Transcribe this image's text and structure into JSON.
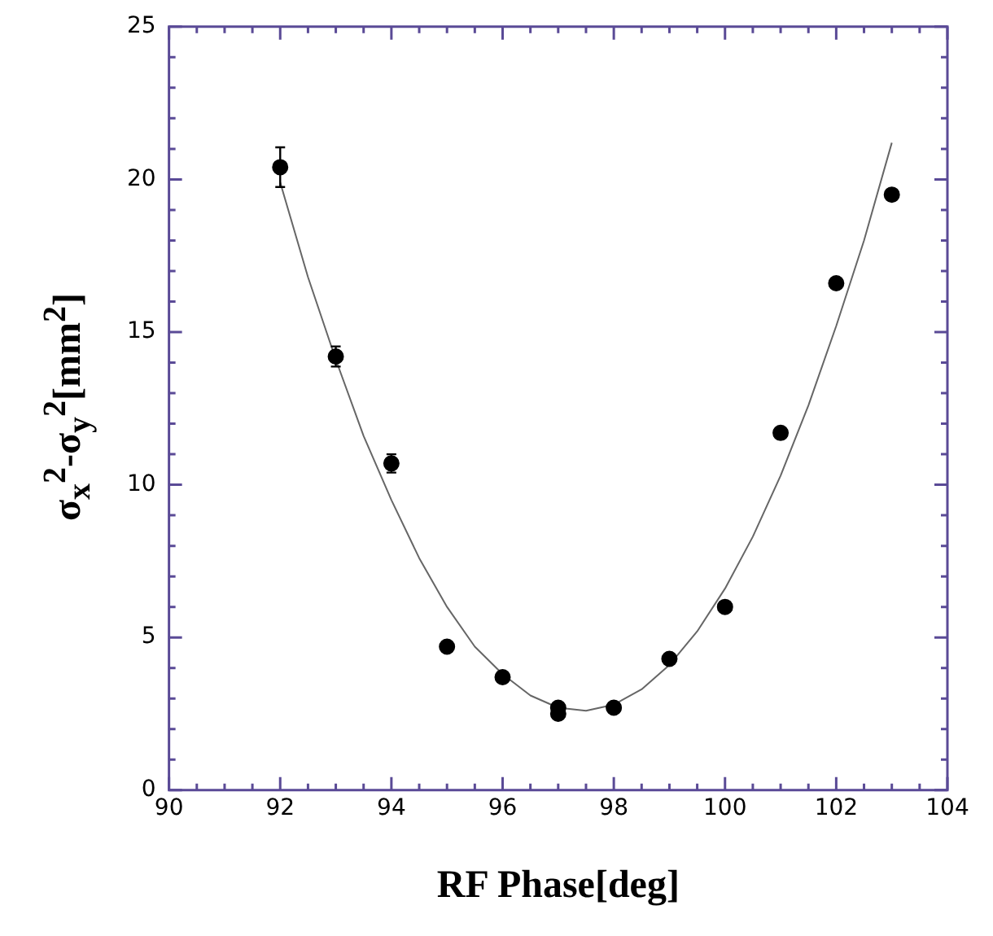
{
  "chart_data": {
    "type": "scatter",
    "xlabel": "RF Phase[deg]",
    "ylabel": "σ$_{x}$$^{2}$-σ$_{y}$$^{2}$[mm$^{2}$]",
    "xlim": [
      90,
      104
    ],
    "ylim": [
      0,
      25
    ],
    "xticks": [
      90,
      {
        "value": 90.5,
        "label": null
      },
      {
        "value": 91,
        "label": null
      },
      {
        "value": 91.5,
        "label": null
      },
      92,
      {
        "value": 92.5,
        "label": null
      },
      {
        "value": 93,
        "label": null
      },
      {
        "value": 93.5,
        "label": null
      },
      94,
      {
        "value": 94.5,
        "label": null
      },
      {
        "value": 95,
        "label": null
      },
      {
        "value": 95.5,
        "label": null
      },
      96,
      {
        "value": 96.5,
        "label": null
      },
      {
        "value": 97,
        "label": null
      },
      {
        "value": 97.5,
        "label": null
      },
      98,
      {
        "value": 98.5,
        "label": null
      },
      {
        "value": 99,
        "label": null
      },
      {
        "value": 99.5,
        "label": null
      },
      100,
      {
        "value": 100.5,
        "label": null
      },
      {
        "value": 101,
        "label": null
      },
      {
        "value": 101.5,
        "label": null
      },
      102,
      {
        "value": 102.5,
        "label": null
      },
      {
        "value": 103,
        "label": null
      },
      {
        "value": 103.5,
        "label": null
      },
      104
    ],
    "yticks": [
      0,
      {
        "value": 1,
        "label": null
      },
      {
        "value": 2,
        "label": null
      },
      {
        "value": 3,
        "label": null
      },
      {
        "value": 4,
        "label": null
      },
      5,
      {
        "value": 6,
        "label": null
      },
      {
        "value": 7,
        "label": null
      },
      {
        "value": 8,
        "label": null
      },
      {
        "value": 9,
        "label": null
      },
      10,
      {
        "value": 11,
        "label": null
      },
      {
        "value": 12,
        "label": null
      },
      {
        "value": 13,
        "label": null
      },
      {
        "value": 14,
        "label": null
      },
      15,
      {
        "value": 16,
        "label": null
      },
      {
        "value": 17,
        "label": null
      },
      {
        "value": 18,
        "label": null
      },
      {
        "value": 19,
        "label": null
      },
      20,
      {
        "value": 21,
        "label": null
      },
      {
        "value": 22,
        "label": null
      },
      {
        "value": 23,
        "label": null
      },
      {
        "value": 24,
        "label": null
      },
      25
    ],
    "grid": false,
    "legend": false,
    "series": [
      {
        "marker": "circle",
        "color": "#000000",
        "x": [
          92,
          93,
          94,
          95,
          96,
          97,
          97,
          98,
          99,
          100,
          101,
          102,
          103
        ],
        "values": [
          20.4,
          14.2,
          10.7,
          4.7,
          3.7,
          2.7,
          2.5,
          2.7,
          4.3,
          6.0,
          11.7,
          16.6,
          19.5
        ],
        "errors": [
          0.65,
          0.33,
          0.3,
          null,
          null,
          null,
          null,
          null,
          null,
          null,
          null,
          null,
          null
        ]
      },
      {
        "type": "line",
        "marker": "none",
        "color": "#666666",
        "line_style": "solid",
        "x": [
          92,
          92.5,
          93,
          93.5,
          94,
          94.5,
          95,
          95.5,
          96,
          96.5,
          97,
          97.5,
          98,
          98.5,
          99,
          99.5,
          100,
          100.5,
          101,
          101.5,
          102,
          102.5,
          103
        ],
        "values": [
          19.9,
          16.8,
          14.1,
          11.6,
          9.5,
          7.6,
          6.0,
          4.7,
          3.8,
          3.1,
          2.7,
          2.6,
          2.8,
          3.3,
          4.1,
          5.2,
          6.6,
          8.3,
          10.3,
          12.6,
          15.2,
          18.0,
          21.2
        ]
      }
    ]
  }
}
